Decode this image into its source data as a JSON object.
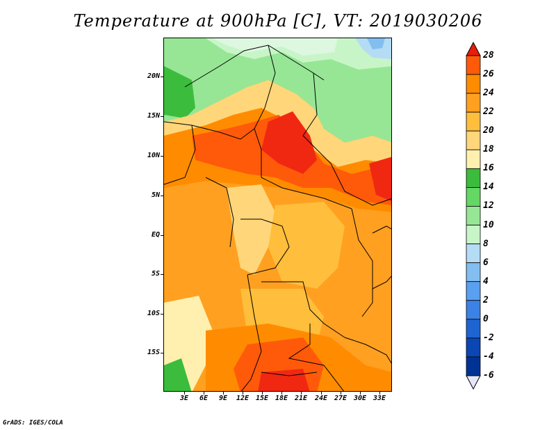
{
  "title": "Temperature at 900hPa [C], VT: 2019030206",
  "footer": "GrADS: IGES/COLA",
  "lat_labels": [
    "20N",
    "15N",
    "10N",
    "5N",
    "EQ",
    "5S",
    "10S",
    "15S"
  ],
  "lon_labels": [
    "3E",
    "6E",
    "9E",
    "12E",
    "15E",
    "18E",
    "21E",
    "24E",
    "27E",
    "30E",
    "33E"
  ],
  "colorbar": {
    "labels": [
      "28",
      "26",
      "24",
      "22",
      "20",
      "18",
      "16",
      "14",
      "12",
      "10",
      "8",
      "6",
      "4",
      "2",
      "0",
      "-2",
      "-4",
      "-6"
    ],
    "colors": [
      "#f02812",
      "#ff5a0a",
      "#ff8c00",
      "#ffa020",
      "#ffbe3c",
      "#ffd67a",
      "#fff0b0",
      "#3cbc3c",
      "#64d764",
      "#96e696",
      "#c8f5c8",
      "#b4dcf5",
      "#82bef0",
      "#5aa0f0",
      "#3c82e6",
      "#1e64d2",
      "#0a46b4",
      "#003296",
      "#000a64"
    ],
    "top_triangle_color": "#e61e0a",
    "bottom_triangle_color": "#e6e6fa"
  },
  "map": {
    "colors": {
      "desert_pale": "#ddf7e0",
      "light_green": "#96e696",
      "green": "#3cbc3c",
      "pale_yellow": "#fff0b0",
      "yellow": "#ffd67a",
      "light_orange": "#ffbe3c",
      "orange": "#ffa020",
      "dark_orange": "#ff8c00",
      "red_orange": "#ff5a0a",
      "red": "#f02812",
      "blue_light": "#b4dcf5",
      "blue": "#82bef0",
      "border": "#000000"
    }
  }
}
